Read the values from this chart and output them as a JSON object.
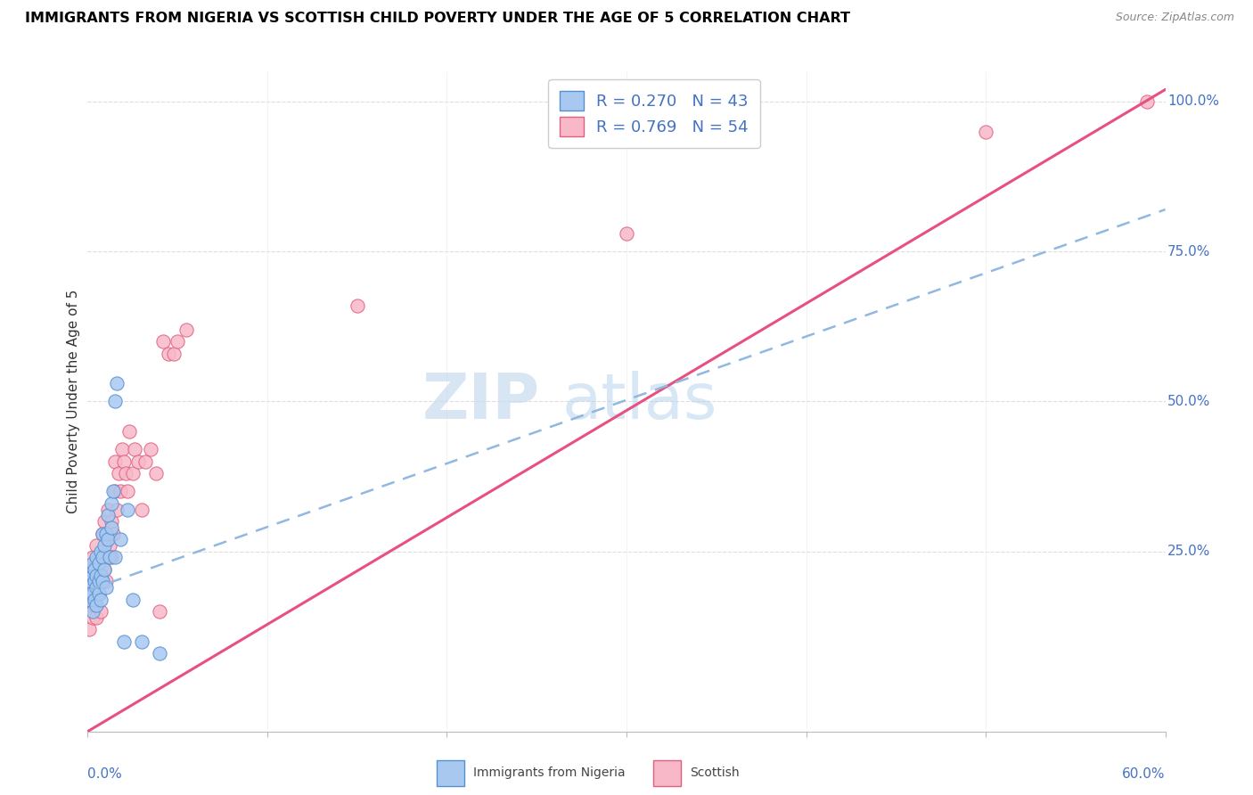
{
  "title": "IMMIGRANTS FROM NIGERIA VS SCOTTISH CHILD POVERTY UNDER THE AGE OF 5 CORRELATION CHART",
  "source": "Source: ZipAtlas.com",
  "ylabel": "Child Poverty Under the Age of 5",
  "legend_label1": "Immigrants from Nigeria",
  "legend_label2": "Scottish",
  "r1": "0.270",
  "n1": "43",
  "r2": "0.769",
  "n2": "54",
  "color_blue_fill": "#A8C8F0",
  "color_blue_edge": "#5590D0",
  "color_pink_fill": "#F8B8C8",
  "color_pink_edge": "#E06080",
  "color_line_blue": "#90B8E0",
  "color_line_pink": "#E85080",
  "watermark_color": "#C8DCF0",
  "xlim": [
    0.0,
    0.6
  ],
  "ylim": [
    -0.05,
    1.05
  ],
  "blue_x": [
    0.001,
    0.002,
    0.002,
    0.002,
    0.003,
    0.003,
    0.003,
    0.003,
    0.004,
    0.004,
    0.004,
    0.005,
    0.005,
    0.005,
    0.005,
    0.006,
    0.006,
    0.006,
    0.007,
    0.007,
    0.007,
    0.008,
    0.008,
    0.008,
    0.009,
    0.009,
    0.01,
    0.01,
    0.011,
    0.011,
    0.012,
    0.013,
    0.013,
    0.014,
    0.015,
    0.015,
    0.016,
    0.018,
    0.02,
    0.022,
    0.025,
    0.03,
    0.04
  ],
  "blue_y": [
    0.17,
    0.18,
    0.2,
    0.22,
    0.15,
    0.18,
    0.21,
    0.23,
    0.17,
    0.2,
    0.22,
    0.16,
    0.19,
    0.21,
    0.24,
    0.18,
    0.2,
    0.23,
    0.17,
    0.21,
    0.25,
    0.2,
    0.24,
    0.28,
    0.22,
    0.26,
    0.19,
    0.28,
    0.27,
    0.31,
    0.24,
    0.29,
    0.33,
    0.35,
    0.24,
    0.5,
    0.53,
    0.27,
    0.1,
    0.32,
    0.17,
    0.1,
    0.08
  ],
  "pink_x": [
    0.001,
    0.002,
    0.002,
    0.003,
    0.003,
    0.003,
    0.004,
    0.004,
    0.005,
    0.005,
    0.005,
    0.006,
    0.006,
    0.007,
    0.007,
    0.008,
    0.008,
    0.009,
    0.009,
    0.01,
    0.01,
    0.011,
    0.011,
    0.012,
    0.013,
    0.013,
    0.014,
    0.015,
    0.015,
    0.016,
    0.017,
    0.018,
    0.019,
    0.02,
    0.021,
    0.022,
    0.023,
    0.025,
    0.026,
    0.028,
    0.03,
    0.032,
    0.035,
    0.038,
    0.04,
    0.042,
    0.045,
    0.048,
    0.05,
    0.055,
    0.15,
    0.3,
    0.5,
    0.59
  ],
  "pink_y": [
    0.12,
    0.16,
    0.22,
    0.14,
    0.18,
    0.24,
    0.16,
    0.22,
    0.14,
    0.2,
    0.26,
    0.18,
    0.24,
    0.15,
    0.22,
    0.2,
    0.28,
    0.22,
    0.3,
    0.2,
    0.28,
    0.24,
    0.32,
    0.26,
    0.24,
    0.3,
    0.28,
    0.35,
    0.4,
    0.32,
    0.38,
    0.35,
    0.42,
    0.4,
    0.38,
    0.35,
    0.45,
    0.38,
    0.42,
    0.4,
    0.32,
    0.4,
    0.42,
    0.38,
    0.15,
    0.6,
    0.58,
    0.58,
    0.6,
    0.62,
    0.66,
    0.78,
    0.95,
    1.0
  ],
  "blue_line_x0": 0.0,
  "blue_line_x1": 0.6,
  "blue_line_y0": 0.185,
  "blue_line_y1": 0.82,
  "pink_line_x0": 0.0,
  "pink_line_x1": 0.6,
  "pink_line_y0": -0.05,
  "pink_line_y1": 1.02
}
